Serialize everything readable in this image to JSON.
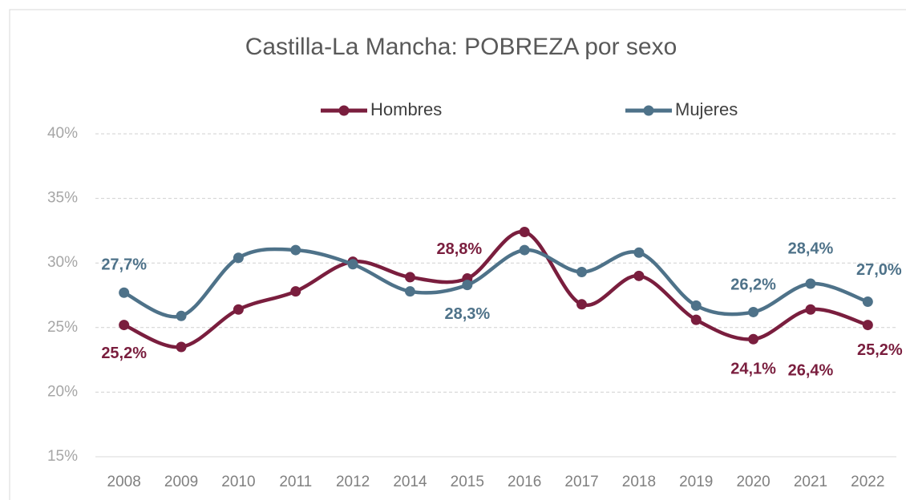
{
  "chart_data": {
    "type": "line",
    "title": "Castilla-La Mancha: POBREZA por sexo",
    "categories": [
      "2008",
      "2009",
      "2010",
      "2011",
      "2012",
      "2014",
      "2015",
      "2016",
      "2017",
      "2018",
      "2019",
      "2020",
      "2021",
      "2022"
    ],
    "series": [
      {
        "name": "Hombres",
        "color": "#7a1e3e",
        "values": [
          25.2,
          23.5,
          26.4,
          27.8,
          30.1,
          28.9,
          28.8,
          32.4,
          26.8,
          29.0,
          25.6,
          24.1,
          26.4,
          25.2
        ],
        "value_labels": [
          "25,2%",
          null,
          null,
          null,
          null,
          null,
          "28,8%",
          null,
          null,
          null,
          null,
          "24,1%",
          "26,4%",
          "25,2%"
        ]
      },
      {
        "name": "Mujeres",
        "color": "#4e7289",
        "values": [
          27.7,
          25.9,
          30.4,
          31.0,
          29.9,
          27.8,
          28.3,
          31.0,
          29.3,
          30.8,
          26.7,
          26.2,
          28.4,
          27.0
        ],
        "value_labels": [
          "27,7%",
          null,
          null,
          null,
          null,
          null,
          "28,3%",
          null,
          null,
          null,
          null,
          "26,2%",
          "28,4%",
          "27,0%"
        ]
      }
    ],
    "ylim": [
      15,
      40
    ],
    "yticks": [
      {
        "value": 15,
        "label": "15%"
      },
      {
        "value": 20,
        "label": "20%"
      },
      {
        "value": 25,
        "label": "25%"
      },
      {
        "value": 30,
        "label": "30%"
      },
      {
        "value": 35,
        "label": "35%"
      },
      {
        "value": 40,
        "label": "40%"
      }
    ],
    "grid": true,
    "legend": "top"
  }
}
